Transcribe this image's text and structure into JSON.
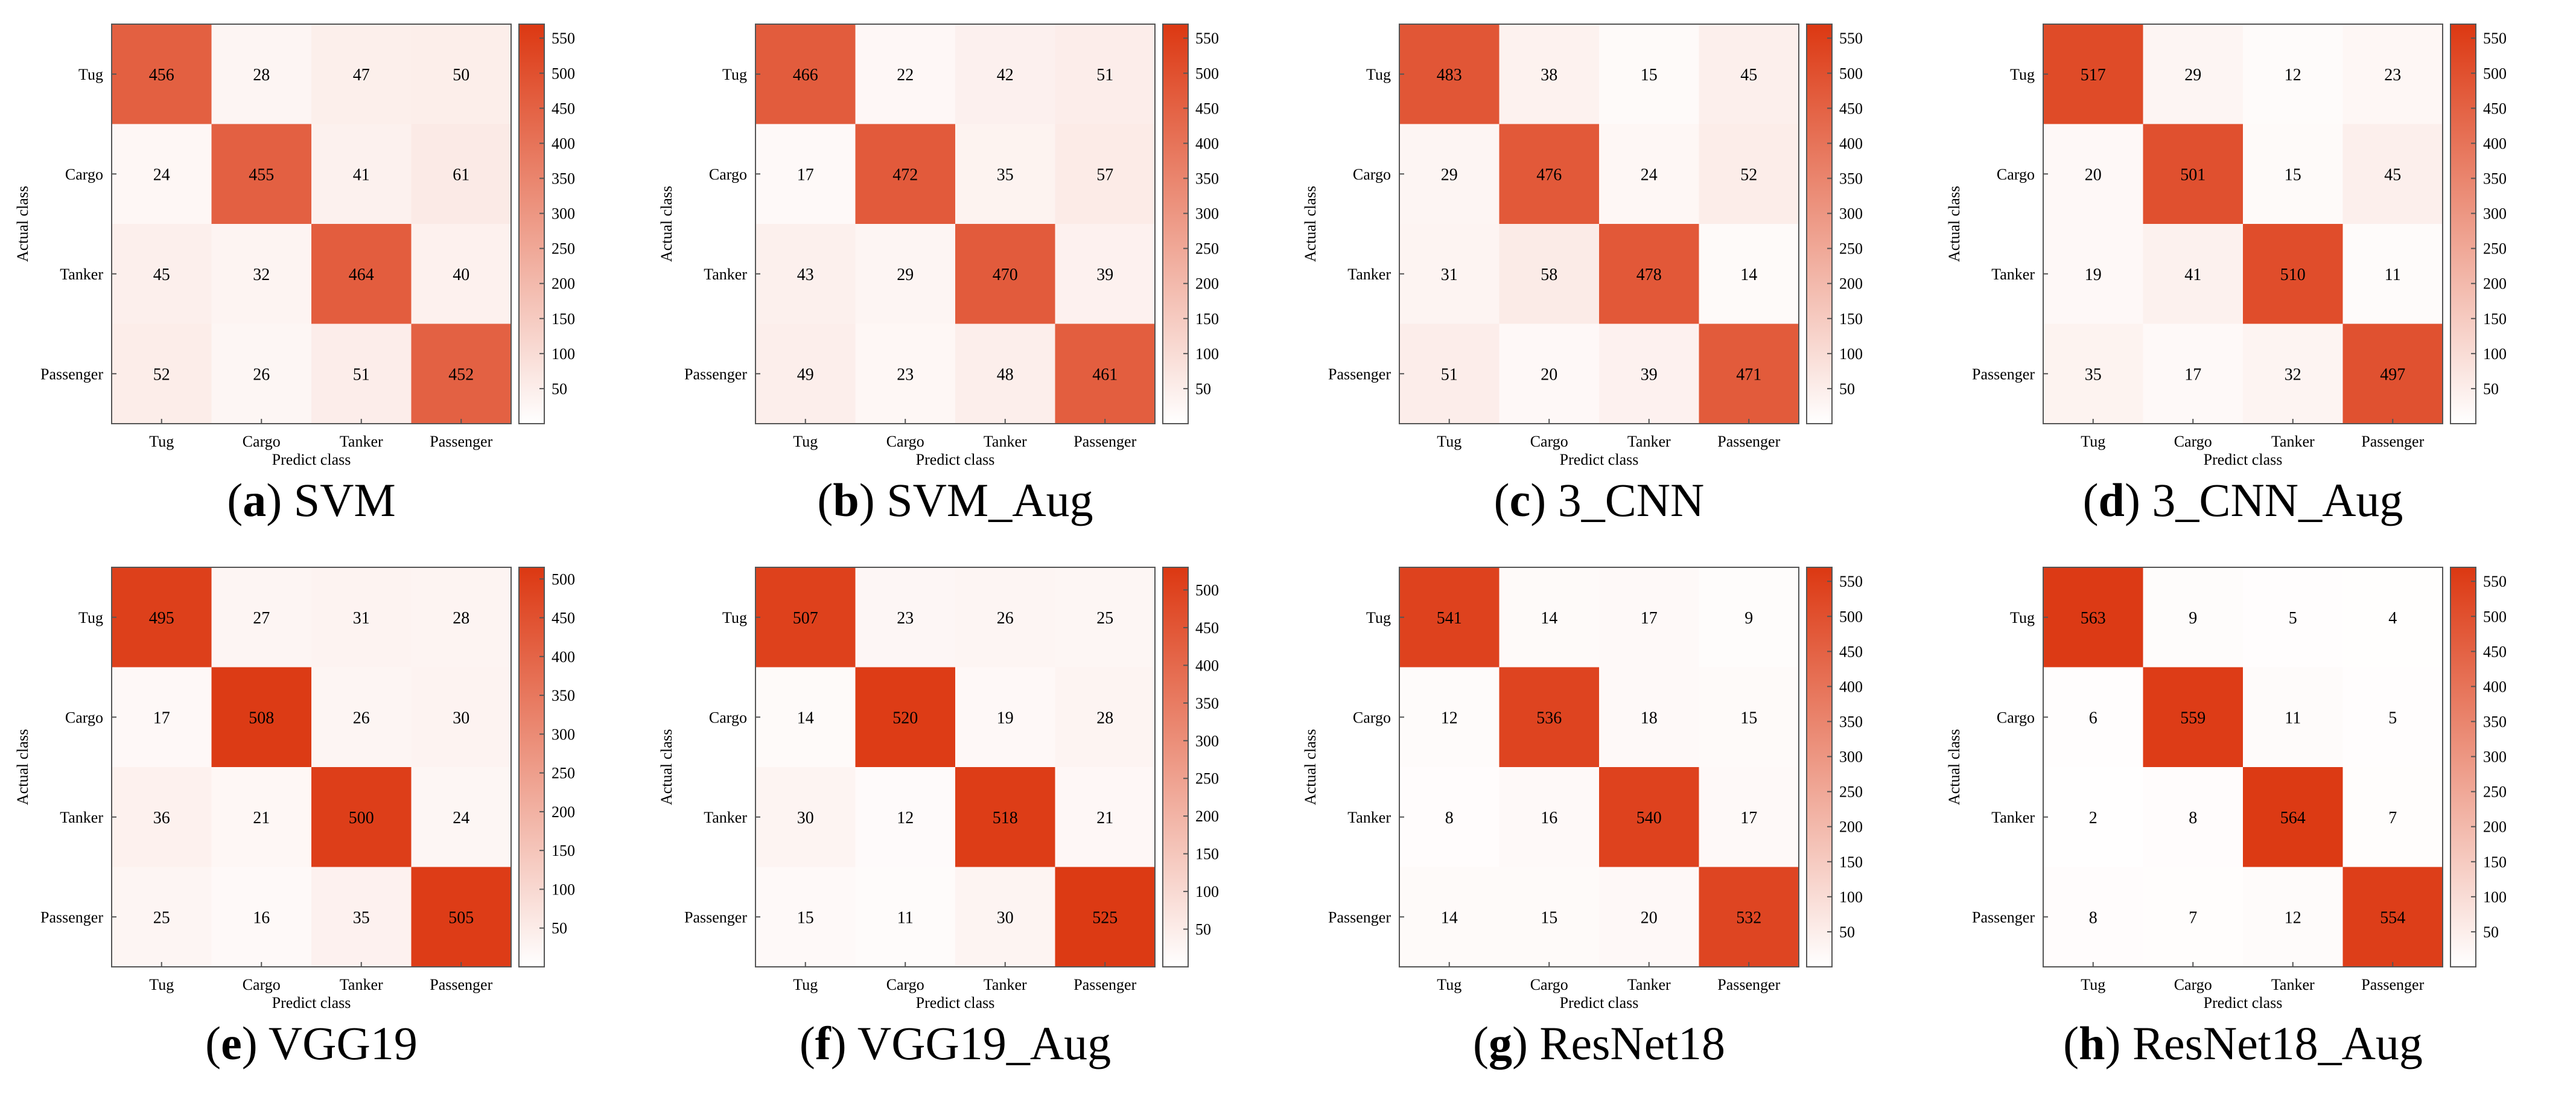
{
  "chart_data": [
    {
      "type": "heatmap",
      "caption_letter": "a",
      "caption_name": "SVM",
      "xlabel": "Predict class",
      "ylabel": "Actual class",
      "x_categories": [
        "Tug",
        "Cargo",
        "Tanker",
        "Passenger"
      ],
      "y_categories": [
        "Tug",
        "Cargo",
        "Tanker",
        "Passenger"
      ],
      "matrix": [
        [
          456,
          28,
          47,
          50
        ],
        [
          24,
          455,
          41,
          61
        ],
        [
          45,
          32,
          464,
          40
        ],
        [
          52,
          26,
          51,
          452
        ]
      ],
      "colorbar": {
        "range": [
          0,
          570
        ],
        "ticks": [
          50,
          100,
          150,
          200,
          250,
          300,
          350,
          400,
          450,
          500,
          550
        ]
      }
    },
    {
      "type": "heatmap",
      "caption_letter": "b",
      "caption_name": "SVM_Aug",
      "xlabel": "Predict class",
      "ylabel": "Actual class",
      "x_categories": [
        "Tug",
        "Cargo",
        "Tanker",
        "Passenger"
      ],
      "y_categories": [
        "Tug",
        "Cargo",
        "Tanker",
        "Passenger"
      ],
      "matrix": [
        [
          466,
          22,
          42,
          51
        ],
        [
          17,
          472,
          35,
          57
        ],
        [
          43,
          29,
          470,
          39
        ],
        [
          49,
          23,
          48,
          461
        ]
      ],
      "colorbar": {
        "range": [
          0,
          570
        ],
        "ticks": [
          50,
          100,
          150,
          200,
          250,
          300,
          350,
          400,
          450,
          500,
          550
        ]
      }
    },
    {
      "type": "heatmap",
      "caption_letter": "c",
      "caption_name": "3_CNN",
      "xlabel": "Predict class",
      "ylabel": "Actual class",
      "x_categories": [
        "Tug",
        "Cargo",
        "Tanker",
        "Passenger"
      ],
      "y_categories": [
        "Tug",
        "Cargo",
        "Tanker",
        "Passenger"
      ],
      "matrix": [
        [
          483,
          38,
          15,
          45
        ],
        [
          29,
          476,
          24,
          52
        ],
        [
          31,
          58,
          478,
          14
        ],
        [
          51,
          20,
          39,
          471
        ]
      ],
      "colorbar": {
        "range": [
          0,
          570
        ],
        "ticks": [
          50,
          100,
          150,
          200,
          250,
          300,
          350,
          400,
          450,
          500,
          550
        ]
      }
    },
    {
      "type": "heatmap",
      "caption_letter": "d",
      "caption_name": "3_CNN_Aug",
      "xlabel": "Predict class",
      "ylabel": "Actual class",
      "x_categories": [
        "Tug",
        "Cargo",
        "Tanker",
        "Passenger"
      ],
      "y_categories": [
        "Tug",
        "Cargo",
        "Tanker",
        "Passenger"
      ],
      "matrix": [
        [
          517,
          29,
          12,
          23
        ],
        [
          20,
          501,
          15,
          45
        ],
        [
          19,
          41,
          510,
          11
        ],
        [
          35,
          17,
          32,
          497
        ]
      ],
      "colorbar": {
        "range": [
          0,
          570
        ],
        "ticks": [
          50,
          100,
          150,
          200,
          250,
          300,
          350,
          400,
          450,
          500,
          550
        ]
      }
    },
    {
      "type": "heatmap",
      "caption_letter": "e",
      "caption_name": "VGG19",
      "xlabel": "Predict class",
      "ylabel": "Actual class",
      "x_categories": [
        "Tug",
        "Cargo",
        "Tanker",
        "Passenger"
      ],
      "y_categories": [
        "Tug",
        "Cargo",
        "Tanker",
        "Passenger"
      ],
      "matrix": [
        [
          495,
          27,
          31,
          28
        ],
        [
          17,
          508,
          26,
          30
        ],
        [
          36,
          21,
          500,
          24
        ],
        [
          25,
          16,
          35,
          505
        ]
      ],
      "colorbar": {
        "range": [
          0,
          515
        ],
        "ticks": [
          50,
          100,
          150,
          200,
          250,
          300,
          350,
          400,
          450,
          500
        ]
      }
    },
    {
      "type": "heatmap",
      "caption_letter": "f",
      "caption_name": "VGG19_Aug",
      "xlabel": "Predict class",
      "ylabel": "Actual class",
      "x_categories": [
        "Tug",
        "Cargo",
        "Tanker",
        "Passenger"
      ],
      "y_categories": [
        "Tug",
        "Cargo",
        "Tanker",
        "Passenger"
      ],
      "matrix": [
        [
          507,
          23,
          26,
          25
        ],
        [
          14,
          520,
          19,
          28
        ],
        [
          30,
          12,
          518,
          21
        ],
        [
          15,
          11,
          30,
          525
        ]
      ],
      "colorbar": {
        "range": [
          0,
          530
        ],
        "ticks": [
          50,
          100,
          150,
          200,
          250,
          300,
          350,
          400,
          450,
          500
        ]
      }
    },
    {
      "type": "heatmap",
      "caption_letter": "g",
      "caption_name": "ResNet18",
      "xlabel": "Predict class",
      "ylabel": "Actual class",
      "x_categories": [
        "Tug",
        "Cargo",
        "Tanker",
        "Passenger"
      ],
      "y_categories": [
        "Tug",
        "Cargo",
        "Tanker",
        "Passenger"
      ],
      "matrix": [
        [
          541,
          14,
          17,
          9
        ],
        [
          12,
          536,
          18,
          15
        ],
        [
          8,
          16,
          540,
          17
        ],
        [
          14,
          15,
          20,
          532
        ]
      ],
      "colorbar": {
        "range": [
          0,
          570
        ],
        "ticks": [
          50,
          100,
          150,
          200,
          250,
          300,
          350,
          400,
          450,
          500,
          550
        ]
      }
    },
    {
      "type": "heatmap",
      "caption_letter": "h",
      "caption_name": "ResNet18_Aug",
      "xlabel": "Predict class",
      "ylabel": "Actual class",
      "x_categories": [
        "Tug",
        "Cargo",
        "Tanker",
        "Passenger"
      ],
      "y_categories": [
        "Tug",
        "Cargo",
        "Tanker",
        "Passenger"
      ],
      "matrix": [
        [
          563,
          9,
          5,
          4
        ],
        [
          6,
          559,
          11,
          5
        ],
        [
          2,
          8,
          564,
          7
        ],
        [
          8,
          7,
          12,
          554
        ]
      ],
      "colorbar": {
        "range": [
          0,
          570
        ],
        "ticks": [
          50,
          100,
          150,
          200,
          250,
          300,
          350,
          400,
          450,
          500,
          550
        ]
      }
    }
  ],
  "colors": {
    "low": "#ffffff",
    "high": "#dc3812",
    "text": "#000000",
    "axis": "#555555"
  }
}
